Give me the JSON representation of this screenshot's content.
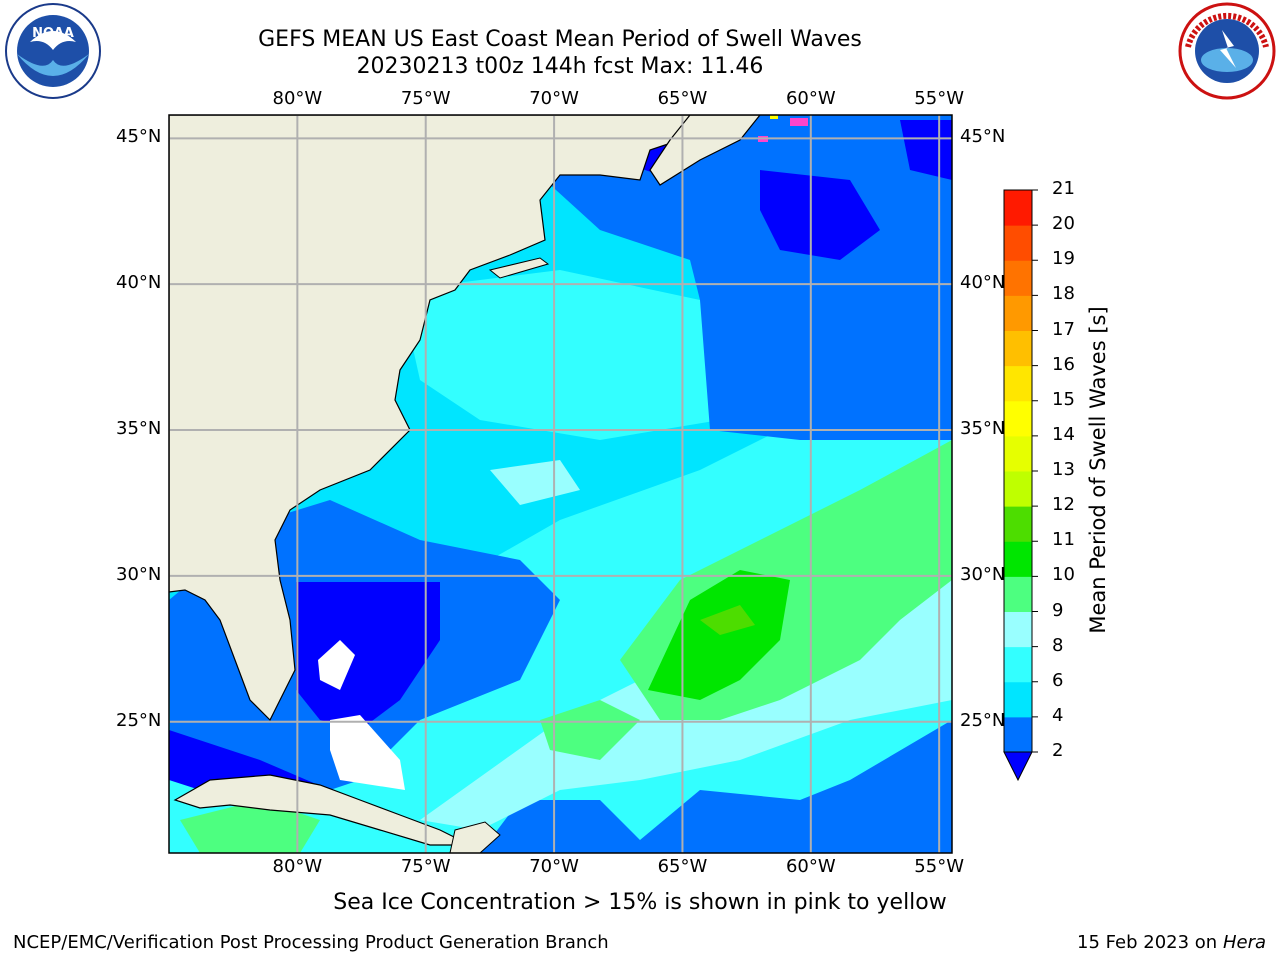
{
  "title": {
    "line1": "GEFS MEAN US East Coast Mean Period of Swell Waves",
    "line2": "20230213 t00z 144h fcst   Max: 11.46"
  },
  "logos": {
    "left": "NOAA",
    "right": "NATIONAL WEATHER SERVICE"
  },
  "map": {
    "lon_labels": [
      "80°W",
      "75°W",
      "70°W",
      "65°W",
      "60°W",
      "55°W"
    ],
    "lat_labels": [
      "45°N",
      "40°N",
      "35°N",
      "30°N",
      "25°N"
    ],
    "extent": {
      "lon": [
        -85,
        -54.5
      ],
      "lat": [
        20.5,
        45.8
      ]
    },
    "land_color": "#EEEEDD",
    "grid_color": "#B0B0B0"
  },
  "colorbar": {
    "label": "Mean Period of Swell Waves [s]",
    "ticks": [
      "2",
      "4",
      "6",
      "8",
      "9",
      "10",
      "11",
      "12",
      "13",
      "14",
      "15",
      "16",
      "17",
      "18",
      "19",
      "20",
      "21"
    ],
    "colors": [
      "#0072FF",
      "#00E5FF",
      "#33FFFF",
      "#99FFFF",
      "#4DFF80",
      "#00E600",
      "#4DDD00",
      "#BFFF00",
      "#E6FF00",
      "#FFFF00",
      "#FFE600",
      "#FFBF00",
      "#FF9900",
      "#FF7300",
      "#FF4D00",
      "#FF1A00"
    ],
    "extend_color": "#0000FF"
  },
  "note": "Sea Ice Concentration > 15% is shown in pink to yellow",
  "footer": {
    "left": "NCEP/EMC/Verification Post Processing Product Generation Branch",
    "right_prefix": "15 Feb 2023 on",
    "right_host": "Hera"
  }
}
